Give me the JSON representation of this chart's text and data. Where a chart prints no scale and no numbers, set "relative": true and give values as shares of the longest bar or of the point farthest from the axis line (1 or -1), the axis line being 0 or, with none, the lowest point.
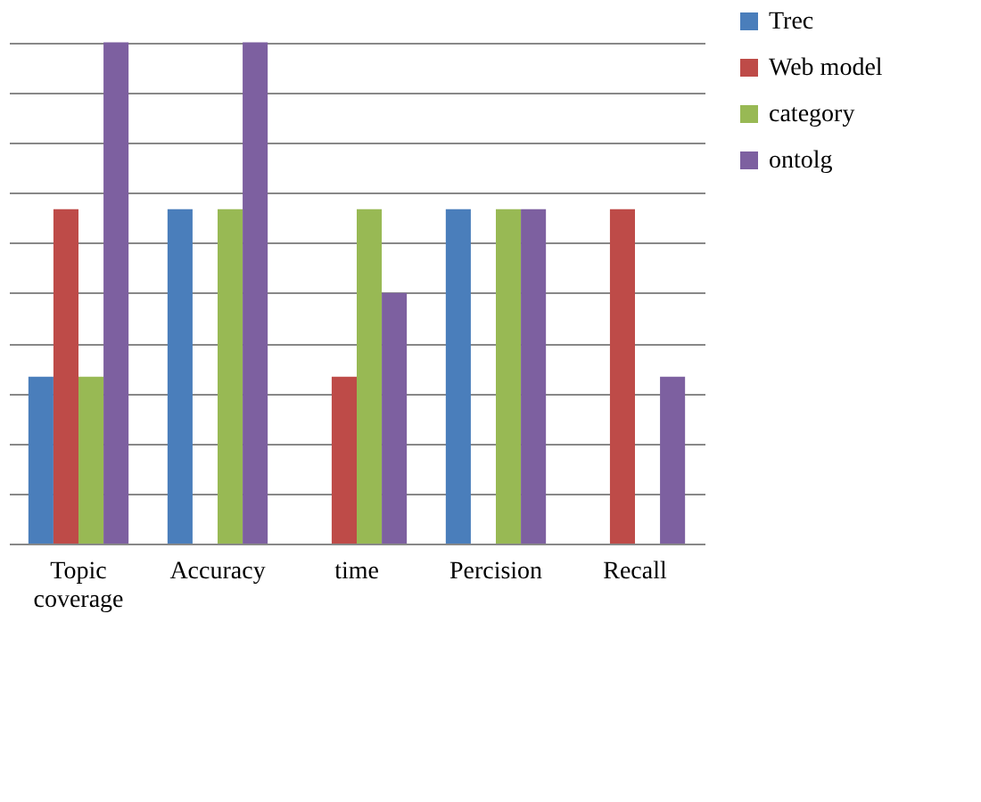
{
  "chart_data": {
    "type": "bar",
    "relative": true,
    "categories": [
      "Topic coverage",
      "Accuracy",
      "time",
      "Percision",
      "Recall"
    ],
    "series": [
      {
        "name": "Trec",
        "color": "#4a7ebb",
        "values": [
          0.333,
          0.667,
          0,
          0.667,
          0
        ]
      },
      {
        "name": "Web model",
        "color": "#be4b48",
        "values": [
          0.667,
          0,
          0.333,
          0,
          0.667
        ]
      },
      {
        "name": "category",
        "color": "#98b954",
        "values": [
          0.333,
          0.667,
          0.667,
          0.667,
          0
        ]
      },
      {
        "name": "ontolg",
        "color": "#7d60a0",
        "values": [
          1,
          1,
          0.5,
          0.667,
          0.333
        ]
      }
    ],
    "grid": "y",
    "legend": "right"
  }
}
